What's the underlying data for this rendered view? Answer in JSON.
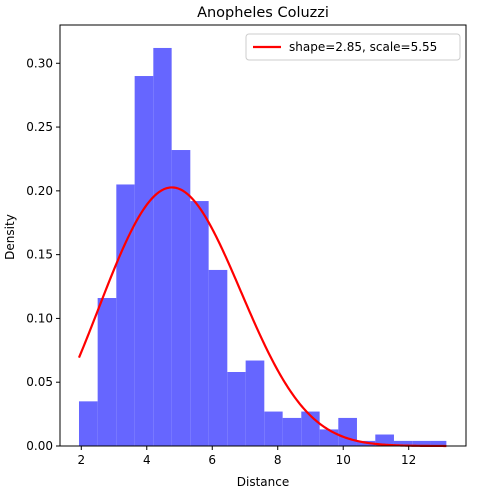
{
  "chart_data": {
    "type": "bar",
    "title": "Anopheles Coluzzi",
    "xlabel": "Distance",
    "ylabel": "Density",
    "xlim": [
      1.35,
      13.75
    ],
    "ylim": [
      0,
      0.33
    ],
    "xticks": [
      2,
      4,
      6,
      8,
      10,
      12
    ],
    "yticks": [
      0.0,
      0.05,
      0.1,
      0.15,
      0.2,
      0.25,
      0.3
    ],
    "grid": false,
    "legend_position": "top-right",
    "histogram": {
      "color": "#6666ff",
      "bins": [
        {
          "x0": 1.93,
          "x1": 2.5,
          "density": 0.035
        },
        {
          "x0": 2.5,
          "x1": 3.07,
          "density": 0.116
        },
        {
          "x0": 3.07,
          "x1": 3.63,
          "density": 0.205
        },
        {
          "x0": 3.63,
          "x1": 4.2,
          "density": 0.29
        },
        {
          "x0": 4.2,
          "x1": 4.76,
          "density": 0.312
        },
        {
          "x0": 4.76,
          "x1": 5.33,
          "density": 0.232
        },
        {
          "x0": 5.33,
          "x1": 5.89,
          "density": 0.192
        },
        {
          "x0": 5.89,
          "x1": 6.46,
          "density": 0.138
        },
        {
          "x0": 6.46,
          "x1": 7.02,
          "density": 0.058
        },
        {
          "x0": 7.02,
          "x1": 7.59,
          "density": 0.067
        },
        {
          "x0": 7.59,
          "x1": 8.15,
          "density": 0.027
        },
        {
          "x0": 8.15,
          "x1": 8.72,
          "density": 0.022
        },
        {
          "x0": 8.72,
          "x1": 9.28,
          "density": 0.027
        },
        {
          "x0": 9.28,
          "x1": 9.85,
          "density": 0.013
        },
        {
          "x0": 9.85,
          "x1": 10.42,
          "density": 0.022
        },
        {
          "x0": 10.42,
          "x1": 10.98,
          "density": 0.004
        },
        {
          "x0": 10.98,
          "x1": 11.55,
          "density": 0.009
        },
        {
          "x0": 11.55,
          "x1": 12.11,
          "density": 0.004
        },
        {
          "x0": 12.11,
          "x1": 12.68,
          "density": 0.004
        },
        {
          "x0": 12.68,
          "x1": 13.15,
          "density": 0.004
        }
      ]
    },
    "series": [
      {
        "name": "shape=2.85, scale=5.55",
        "type": "line",
        "color": "#ff0000",
        "distribution": "weibull",
        "shape": 2.85,
        "scale": 5.55,
        "x_range": [
          1.93,
          13.15
        ]
      }
    ]
  }
}
